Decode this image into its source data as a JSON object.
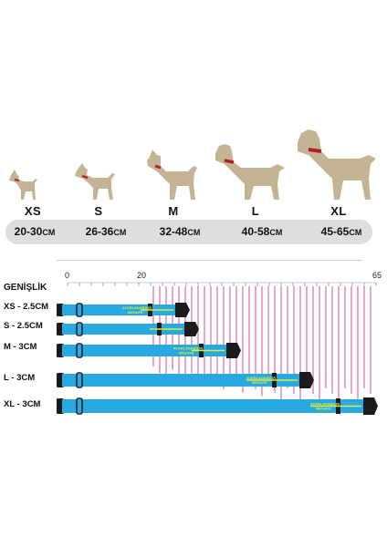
{
  "sizes": [
    {
      "label": "XS",
      "range": "20-30",
      "unit": "CM"
    },
    {
      "label": "S",
      "range": "26-36",
      "unit": "CM"
    },
    {
      "label": "M",
      "range": "32-48",
      "unit": "CM"
    },
    {
      "label": "L",
      "range": "40-58",
      "unit": "CM"
    },
    {
      "label": "XL",
      "range": "45-65",
      "unit": "CM"
    }
  ],
  "chart": {
    "width_heading": "GENİŞLİK",
    "scale_min": "0",
    "scale_mid": "20",
    "scale_max": "65",
    "rows": [
      {
        "label": "XS - 2.5CM"
      },
      {
        "label": "S - 2.5CM"
      },
      {
        "label": "M - 3CM"
      },
      {
        "label": "L - 3CM"
      },
      {
        "label": "XL - 3CM"
      }
    ],
    "adjust_text_1": "AYARLANABİLİR",
    "adjust_text_2": "MESAFE"
  },
  "colors": {
    "collar": "#29a9e1",
    "arrow": "#d8ec3c",
    "tick": "#c1287a",
    "dog": "#c5b493",
    "collar_dog": "#b3202a"
  }
}
